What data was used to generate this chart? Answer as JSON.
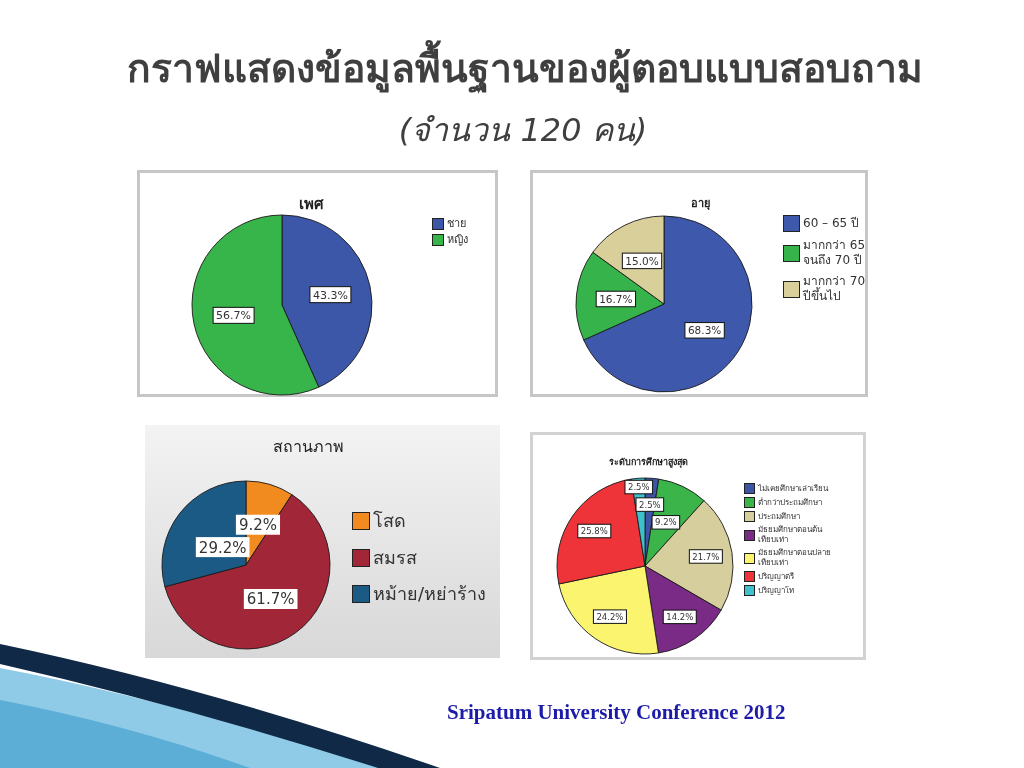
{
  "chart_data": [
    {
      "type": "other",
      "title": "กราฟแสดงข้อมูลพื้นฐานของผู้ตอบแบบสอบถาม",
      "subtitle": "(จำนวน 120 คน)",
      "annotations": [
        "Sripatum University Conference 2012"
      ]
    },
    {
      "type": "pie",
      "title": "เพศ",
      "categories": [
        "ชาย",
        "หญิง"
      ],
      "values": [
        43.3,
        56.7
      ],
      "colors": [
        "#3d57a8",
        "#38b54a"
      ],
      "value_labels": [
        "43.3%",
        "56.7%"
      ],
      "legend": "top right"
    },
    {
      "type": "pie",
      "title": "อายุ",
      "categories": [
        "60 – 65 ปี",
        "มากกว่า 65 จนถึง 70 ปี",
        "มากกว่า 70 ปีขึ้นไป"
      ],
      "values": [
        68.3,
        16.7,
        15.0
      ],
      "colors": [
        "#3e59ab",
        "#36b44b",
        "#d8cf9b"
      ],
      "value_labels": [
        "68.3%",
        "16.7%",
        "15.0%"
      ],
      "legend": "top right"
    },
    {
      "type": "pie",
      "title": "สถานภาพ",
      "categories": [
        "โสด",
        "สมรส",
        "หม้าย/หย่าร้าง"
      ],
      "values": [
        9.2,
        61.7,
        29.2
      ],
      "colors": [
        "#f18b1f",
        "#a12638",
        "#1c5a86"
      ],
      "value_labels": [
        "9.2%",
        "61.7%",
        "29.2%"
      ],
      "legend": "right"
    },
    {
      "type": "pie",
      "title": "ระดับการศึกษาสูงสุด",
      "categories": [
        "ไม่เคยศึกษาเล่าเรียน",
        "ต่ำกว่าประถมศึกษา",
        "ประถมศึกษา",
        "มัธยมศึกษาตอนต้นเทียบเท่า",
        "มัธยมศึกษาตอนปลายเทียบเท่า",
        "ปริญญาตรี",
        "ปริญญาโท"
      ],
      "values": [
        2.5,
        9.2,
        21.7,
        14.2,
        24.2,
        25.8,
        2.5
      ],
      "colors": [
        "#3d55a6",
        "#3bb54a",
        "#d6cf9d",
        "#7a2b85",
        "#fbf46f",
        "#ee3339",
        "#3fc1cc"
      ],
      "value_labels": [
        "2.5%",
        "9.2%",
        "21.7%",
        "14.2%",
        "24.2%",
        "25.8%",
        "2.5%"
      ],
      "legend": "top right"
    }
  ]
}
